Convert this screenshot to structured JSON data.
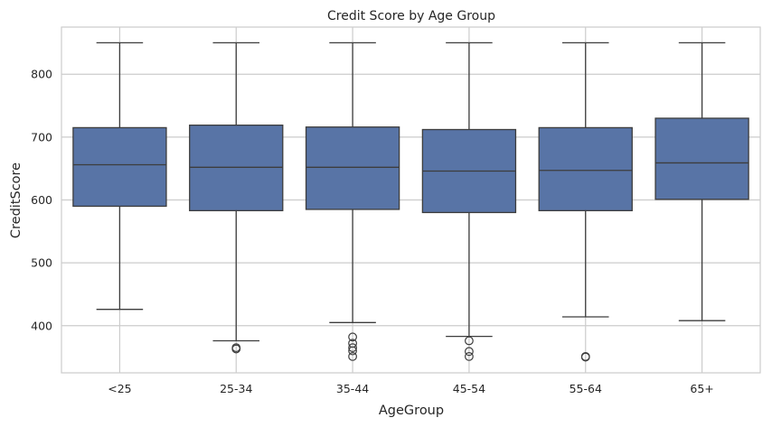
{
  "chart_data": {
    "type": "box",
    "title": "Credit Score by Age Group",
    "xlabel": "AgeGroup",
    "ylabel": "CreditScore",
    "ylim": [
      325,
      875
    ],
    "yticks": [
      400,
      500,
      600,
      700,
      800
    ],
    "grid": true,
    "colors": {
      "box_fill": "#5874a6",
      "line": "#3d3d3d",
      "grid": "#cccccc",
      "frame": "#cccccc"
    },
    "categories": [
      "<25",
      "25-34",
      "35-44",
      "45-54",
      "55-64",
      "65+"
    ],
    "boxes": [
      {
        "label": "<25",
        "whislo": 426,
        "q1": 590,
        "med": 656,
        "q3": 715,
        "whishi": 850,
        "fliers": []
      },
      {
        "label": "25-34",
        "whislo": 376,
        "q1": 583,
        "med": 652,
        "q3": 719,
        "whishi": 850,
        "fliers": [
          365,
          363
        ]
      },
      {
        "label": "35-44",
        "whislo": 405,
        "q1": 585,
        "med": 652,
        "q3": 716,
        "whishi": 850,
        "fliers": [
          382,
          372,
          365,
          360,
          351
        ]
      },
      {
        "label": "45-54",
        "whislo": 383,
        "q1": 580,
        "med": 646,
        "q3": 712,
        "whishi": 850,
        "fliers": [
          376,
          359,
          351
        ]
      },
      {
        "label": "55-64",
        "whislo": 414,
        "q1": 583,
        "med": 647,
        "q3": 715,
        "whishi": 850,
        "fliers": [
          351,
          350
        ]
      },
      {
        "label": "65+",
        "whislo": 408,
        "q1": 601,
        "med": 659,
        "q3": 730,
        "whishi": 850,
        "fliers": []
      }
    ]
  }
}
